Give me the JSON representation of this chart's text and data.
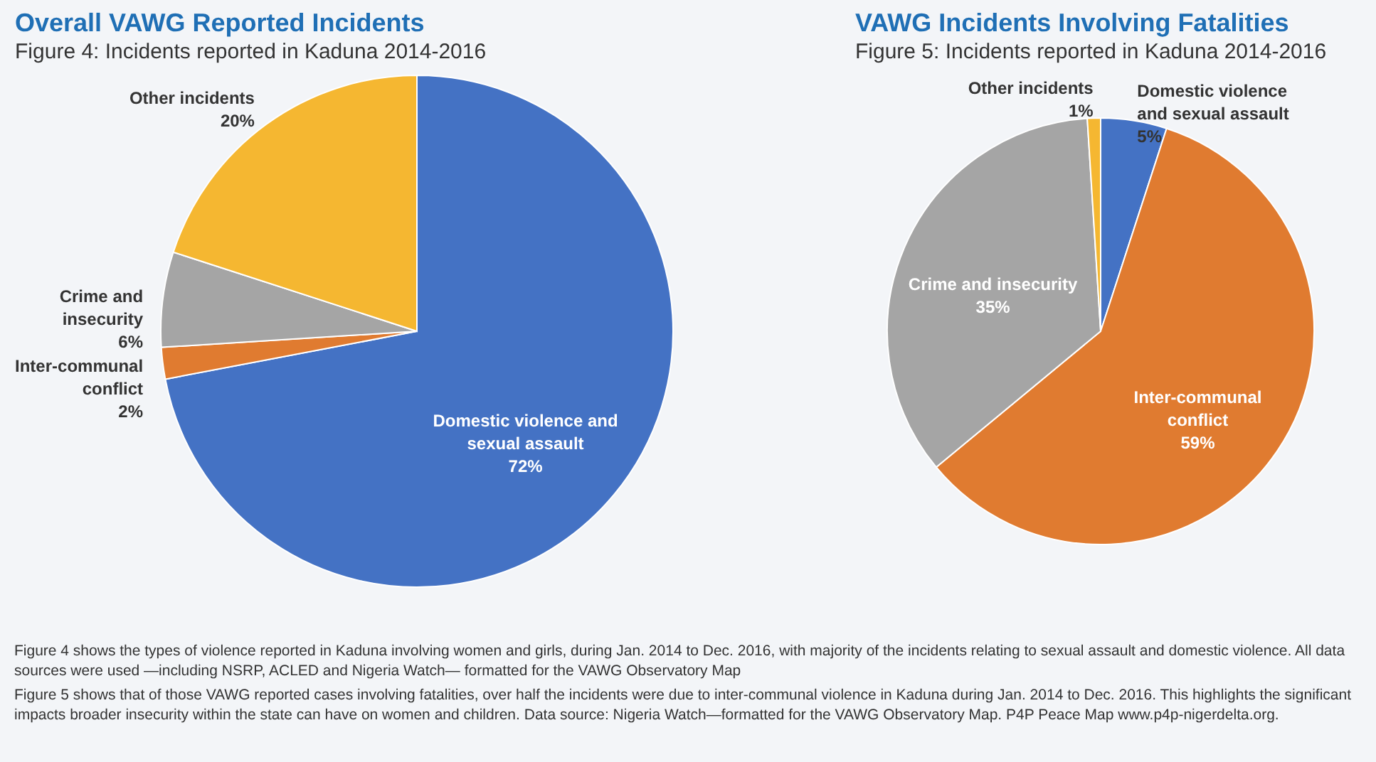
{
  "chart_data": [
    {
      "type": "pie",
      "title": "Overall VAWG Reported Incidents",
      "subtitle": "Figure 4: Incidents reported in Kaduna 2014-2016",
      "categories": [
        "Domestic violence and sexual assault",
        "Inter-communal conflict",
        "Crime and insecurity",
        "Other incidents"
      ],
      "values": [
        72,
        2,
        6,
        20
      ],
      "colors": [
        "#4472c4",
        "#e07b30",
        "#a5a5a5",
        "#f5b731"
      ],
      "value_labels": [
        "72%",
        "2%",
        "6%",
        "20%"
      ],
      "legend": false,
      "annotations": [
        "Figure 4 shows the types of violence reported in Kaduna involving women and girls, during Jan. 2014 to Dec. 2016, with majority of the incidents relating to sexual assault and domestic violence. All data sources were used —including NSRP, ACLED and Nigeria Watch— formatted for the VAWG Observatory Map"
      ]
    },
    {
      "type": "pie",
      "title": "VAWG Incidents Involving Fatalities",
      "subtitle": "Figure 5: Incidents reported in Kaduna 2014-2016",
      "categories": [
        "Domestic violence and sexual assault",
        "Inter-communal conflict",
        "Crime and insecurity",
        "Other incidents"
      ],
      "values": [
        5,
        59,
        35,
        1
      ],
      "colors": [
        "#4472c4",
        "#e07b30",
        "#a5a5a5",
        "#f5b731"
      ],
      "value_labels": [
        "5%",
        "59%",
        "35%",
        "1%"
      ],
      "legend": false,
      "annotations": [
        "Figure 5 shows that of those VAWG reported cases involving fatalities, over half the incidents were due to inter-communal violence in Kaduna during Jan. 2014 to Dec. 2016. This highlights the significant impacts broader insecurity within the state can have on women and children. Data source: Nigeria Watch—formatted for the VAWG Observatory Map. P4P Peace Map www.p4p-nigerdelta.org."
      ]
    }
  ]
}
